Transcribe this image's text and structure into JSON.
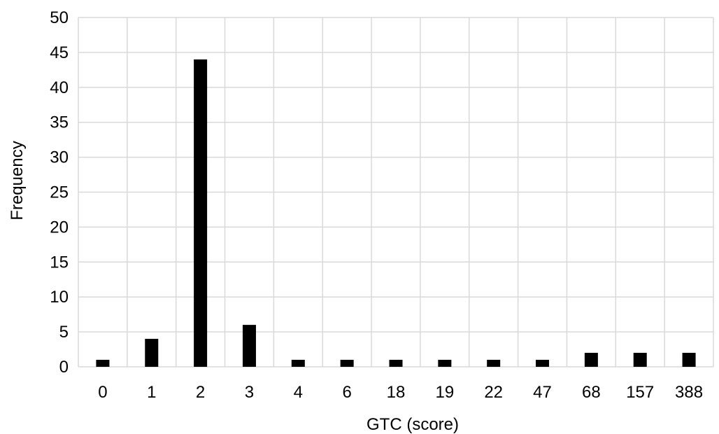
{
  "chart_data": {
    "type": "bar",
    "title": "",
    "xlabel": "GTC (score)",
    "ylabel": "Frequency",
    "categories": [
      "0",
      "1",
      "2",
      "3",
      "4",
      "6",
      "18",
      "19",
      "22",
      "47",
      "68",
      "157",
      "388"
    ],
    "values": [
      1,
      4,
      44,
      6,
      1,
      1,
      1,
      1,
      1,
      1,
      2,
      2,
      2
    ],
    "ylim": [
      0,
      50
    ],
    "yticks": [
      "0",
      "5",
      "10",
      "15",
      "20",
      "25",
      "30",
      "35",
      "40",
      "45",
      "50"
    ],
    "grid": true,
    "bar_color": "#000000",
    "grid_color": "#d9d9d9"
  }
}
